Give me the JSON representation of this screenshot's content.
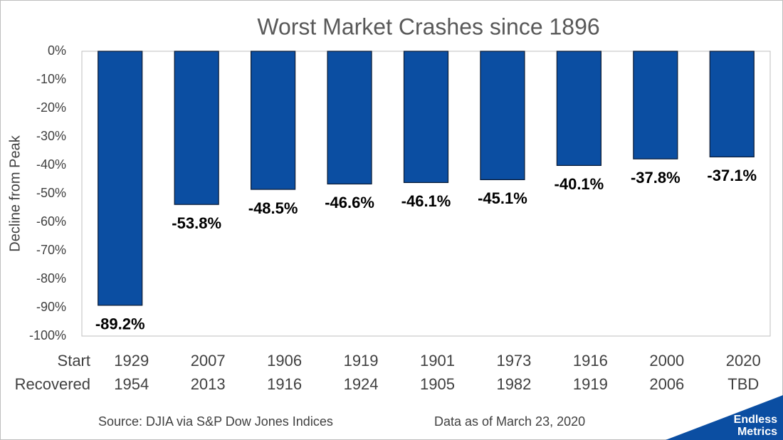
{
  "chart_data": {
    "type": "bar",
    "title": "Worst Market Crashes since 1896",
    "y_label": "Decline from Peak",
    "category_rows": [
      {
        "name": "Start",
        "labels": [
          "1929",
          "2007",
          "1906",
          "1919",
          "1901",
          "1973",
          "1916",
          "2000",
          "2020"
        ]
      },
      {
        "name": "Recovered",
        "labels": [
          "1954",
          "2013",
          "1916",
          "1924",
          "1905",
          "1982",
          "1919",
          "2006",
          "TBD"
        ]
      }
    ],
    "values": [
      -89.2,
      -53.8,
      -48.5,
      -46.6,
      -46.1,
      -45.1,
      -40.1,
      -37.8,
      -37.1
    ],
    "value_labels": [
      "-89.2%",
      "-53.8%",
      "-48.5%",
      "-46.6%",
      "-46.1%",
      "-45.1%",
      "-40.1%",
      "-37.8%",
      "-37.1%"
    ],
    "color": "#0b4ea2",
    "ylim": [
      -100,
      0
    ],
    "yticks": [
      {
        "value": 0,
        "label": "0%"
      },
      {
        "value": -10,
        "label": "-10%"
      },
      {
        "value": -20,
        "label": "-20%"
      },
      {
        "value": -30,
        "label": "-30%"
      },
      {
        "value": -40,
        "label": "-40%"
      },
      {
        "value": -50,
        "label": "-50%"
      },
      {
        "value": -60,
        "label": "-60%"
      },
      {
        "value": -70,
        "label": "-70%"
      },
      {
        "value": -80,
        "label": "-80%"
      },
      {
        "value": -90,
        "label": "-90%"
      },
      {
        "value": -100,
        "label": "-100%"
      }
    ],
    "grid": false,
    "source": "Source: DJIA via S&P Dow Jones Indices",
    "data_note": "Data as of March 23, 2020",
    "logo": [
      "Endless",
      "Metrics"
    ]
  }
}
